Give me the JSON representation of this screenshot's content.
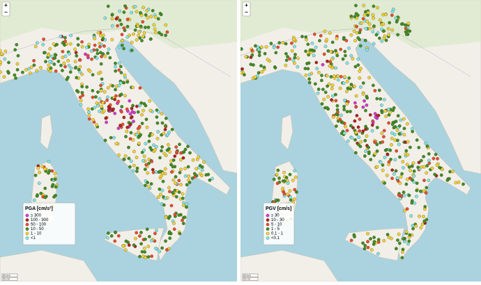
{
  "maps": [
    {
      "legend": {
        "title": "PGA [cm/s²]",
        "items": [
          {
            "label": "≥ 300",
            "color": "#d936d0"
          },
          {
            "label": "100 - 300",
            "color": "#b3201a"
          },
          {
            "label": "50 - 100",
            "color": "#ee4a2a"
          },
          {
            "label": "10 - 50",
            "color": "#3f8f1d"
          },
          {
            "label": "1 - 10",
            "color": "#f4d32e"
          },
          {
            "label": "<1",
            "color": "#7fe8e6"
          }
        ]
      },
      "zoom": [
        "+",
        "−"
      ],
      "scale": [
        "50 km",
        "20 mi"
      ]
    },
    {
      "legend": {
        "title": "PGV [cm/s]",
        "items": [
          {
            "label": "≥ 30",
            "color": "#d936d0"
          },
          {
            "label": "10 - 30",
            "color": "#b3201a"
          },
          {
            "label": "5 - 10",
            "color": "#ee4a2a"
          },
          {
            "label": "1 - 5",
            "color": "#3f8f1d"
          },
          {
            "label": "0.1 - 1",
            "color": "#f4d32e"
          },
          {
            "label": "<0.1",
            "color": "#7fe8e6"
          }
        ]
      },
      "zoom": [
        "+",
        "−"
      ],
      "scale": [
        "50 km",
        "20 mi"
      ]
    }
  ]
}
